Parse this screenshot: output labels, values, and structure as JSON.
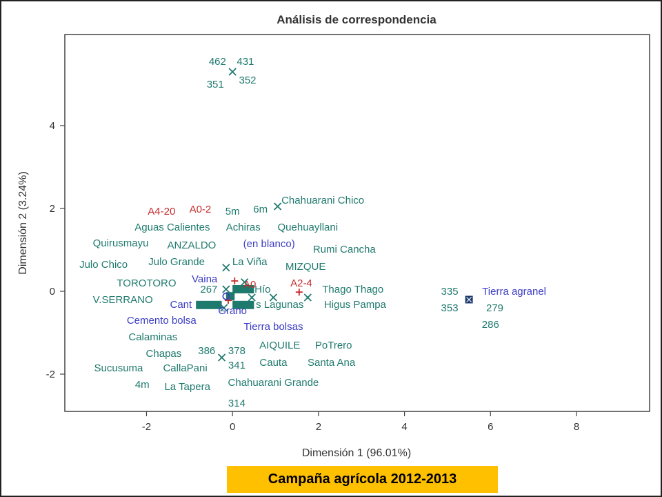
{
  "footer": {
    "text": "Campaña agrícola 2012-2013"
  },
  "colors": {
    "teal": "#1f7a6e",
    "red": "#c42b2b",
    "blue": "#3b3bc4",
    "navy": "#1c3a6e",
    "banner": "#ffc000"
  },
  "chart_data": {
    "type": "scatter",
    "title": "Análisis de correspondencia",
    "xlabel": "Dimensión 1 (96.01%)",
    "ylabel": "Dimensión 2 (3.24%)",
    "xlim": [
      -3.9,
      9.7
    ],
    "ylim": [
      -2.9,
      6.2
    ],
    "xticks": [
      "-2",
      "0",
      "2",
      "4",
      "6",
      "8"
    ],
    "xtick_values": [
      -2,
      0,
      2,
      4,
      6,
      8
    ],
    "yticks": [
      "-2",
      "0",
      "2",
      "4"
    ],
    "ytick_values": [
      -2,
      0,
      2,
      4
    ],
    "grid": false,
    "markers": [
      {
        "x": 0.0,
        "y": 5.3,
        "symbol": "x",
        "color": "teal"
      },
      {
        "x": 1.05,
        "y": 2.05,
        "symbol": "x",
        "color": "teal"
      },
      {
        "x": -0.15,
        "y": 0.57,
        "symbol": "x",
        "color": "teal"
      },
      {
        "x": 1.75,
        "y": -0.15,
        "symbol": "x",
        "color": "teal"
      },
      {
        "x": 0.95,
        "y": -0.15,
        "symbol": "x",
        "color": "teal"
      },
      {
        "x": -0.25,
        "y": -1.6,
        "symbol": "x",
        "color": "teal"
      },
      {
        "x": 0.28,
        "y": 0.22,
        "symbol": "x",
        "color": "teal"
      },
      {
        "x": 0.45,
        "y": -0.15,
        "symbol": "x",
        "color": "teal"
      },
      {
        "x": -0.2,
        "y": -0.4,
        "symbol": "x",
        "color": "teal"
      },
      {
        "x": -0.15,
        "y": 0.05,
        "symbol": "x",
        "color": "teal"
      },
      {
        "x": 1.55,
        "y": -0.02,
        "symbol": "+",
        "color": "red"
      },
      {
        "x": 0.05,
        "y": 0.25,
        "symbol": "+",
        "color": "red"
      },
      {
        "x": -0.1,
        "y": -0.22,
        "symbol": "+",
        "color": "red"
      },
      {
        "x": -0.15,
        "y": -0.12,
        "symbol": "o",
        "color": "blue"
      },
      {
        "x": 5.5,
        "y": -0.2,
        "symbol": "box",
        "color": "navy"
      }
    ],
    "clusters": [
      {
        "x": 0.25,
        "y": 0.05,
        "w": 0.5,
        "h": 0.2,
        "color": "teal"
      },
      {
        "x": -0.55,
        "y": -0.33,
        "w": 0.6,
        "h": 0.2,
        "color": "teal"
      },
      {
        "x": 0.25,
        "y": -0.33,
        "w": 0.5,
        "h": 0.2,
        "color": "teal"
      },
      {
        "x": -0.05,
        "y": -0.12,
        "w": 0.2,
        "h": 0.2,
        "color": "teal"
      }
    ],
    "annotations": [
      {
        "text": "462",
        "x": -0.35,
        "y": 5.55,
        "color": "teal"
      },
      {
        "text": "431",
        "x": 0.3,
        "y": 5.55,
        "color": "teal"
      },
      {
        "text": "351",
        "x": -0.4,
        "y": 5.0,
        "color": "teal"
      },
      {
        "text": "352",
        "x": 0.35,
        "y": 5.1,
        "color": "teal"
      },
      {
        "text": "Chahuarani Chico",
        "x": 2.1,
        "y": 2.2,
        "color": "teal"
      },
      {
        "text": "A4-20",
        "x": -1.65,
        "y": 1.93,
        "color": "red"
      },
      {
        "text": "A0-2",
        "x": -0.75,
        "y": 1.98,
        "color": "red"
      },
      {
        "text": "5m",
        "x": 0.0,
        "y": 1.93,
        "color": "teal"
      },
      {
        "text": "6m",
        "x": 0.65,
        "y": 1.98,
        "color": "teal"
      },
      {
        "text": "Aguas Calientes",
        "x": -1.4,
        "y": 1.55,
        "color": "teal"
      },
      {
        "text": "Achiras",
        "x": 0.25,
        "y": 1.55,
        "color": "teal"
      },
      {
        "text": "Quehuayllani",
        "x": 1.75,
        "y": 1.55,
        "color": "teal"
      },
      {
        "text": "Quirusmayu",
        "x": -2.6,
        "y": 1.17,
        "color": "teal"
      },
      {
        "text": "ANZALDO",
        "x": -0.95,
        "y": 1.12,
        "color": "teal"
      },
      {
        "text": "(en blanco)",
        "x": 0.85,
        "y": 1.15,
        "color": "blue"
      },
      {
        "text": "Rumi Cancha",
        "x": 2.6,
        "y": 1.02,
        "color": "teal"
      },
      {
        "text": "Julo Grande",
        "x": -1.3,
        "y": 0.72,
        "color": "teal"
      },
      {
        "text": "La Viña",
        "x": 0.4,
        "y": 0.72,
        "color": "teal"
      },
      {
        "text": "MIZQUE",
        "x": 1.7,
        "y": 0.6,
        "color": "teal"
      },
      {
        "text": "Julo Chico",
        "x": -3.0,
        "y": 0.65,
        "color": "teal"
      },
      {
        "text": "TOROTORO",
        "x": -2.0,
        "y": 0.2,
        "color": "teal"
      },
      {
        "text": "Vaina",
        "x": -0.65,
        "y": 0.3,
        "color": "blue"
      },
      {
        "text": "267",
        "x": -0.55,
        "y": 0.05,
        "color": "teal"
      },
      {
        "text": "A0",
        "x": 0.4,
        "y": 0.17,
        "color": "red"
      },
      {
        "text": "Hío",
        "x": 0.7,
        "y": 0.05,
        "color": "teal"
      },
      {
        "text": "A2-4",
        "x": 1.6,
        "y": 0.2,
        "color": "red"
      },
      {
        "text": "Thago Thago",
        "x": 2.8,
        "y": 0.05,
        "color": "teal"
      },
      {
        "text": "V.SERRANO",
        "x": -2.55,
        "y": -0.2,
        "color": "teal"
      },
      {
        "text": "Cant",
        "x": -1.2,
        "y": -0.32,
        "color": "blue"
      },
      {
        "text": "s Lagunas",
        "x": 1.1,
        "y": -0.32,
        "color": "teal"
      },
      {
        "text": "Higus Pampa",
        "x": 2.85,
        "y": -0.32,
        "color": "teal"
      },
      {
        "text": "Grano",
        "x": 0.0,
        "y": -0.47,
        "color": "blue"
      },
      {
        "text": "Cemento bolsa",
        "x": -1.65,
        "y": -0.7,
        "color": "blue"
      },
      {
        "text": "Tierra bolsas",
        "x": 0.95,
        "y": -0.85,
        "color": "blue"
      },
      {
        "text": "Calaminas",
        "x": -1.85,
        "y": -1.1,
        "color": "teal"
      },
      {
        "text": "AIQUILE",
        "x": 1.1,
        "y": -1.3,
        "color": "teal"
      },
      {
        "text": "PoTrero",
        "x": 2.35,
        "y": -1.3,
        "color": "teal"
      },
      {
        "text": "Chapas",
        "x": -1.6,
        "y": -1.5,
        "color": "teal"
      },
      {
        "text": "386",
        "x": -0.6,
        "y": -1.43,
        "color": "teal"
      },
      {
        "text": "378",
        "x": 0.1,
        "y": -1.43,
        "color": "teal"
      },
      {
        "text": "Sucusuma",
        "x": -2.65,
        "y": -1.85,
        "color": "teal"
      },
      {
        "text": "CallaPani",
        "x": -1.1,
        "y": -1.85,
        "color": "teal"
      },
      {
        "text": "341",
        "x": 0.1,
        "y": -1.78,
        "color": "teal"
      },
      {
        "text": "Cauta",
        "x": 0.95,
        "y": -1.72,
        "color": "teal"
      },
      {
        "text": "Santa Ana",
        "x": 2.3,
        "y": -1.72,
        "color": "teal"
      },
      {
        "text": "4m",
        "x": -2.1,
        "y": -2.25,
        "color": "teal"
      },
      {
        "text": "La Tapera",
        "x": -1.05,
        "y": -2.3,
        "color": "teal"
      },
      {
        "text": "Chahuarani Grande",
        "x": 0.95,
        "y": -2.2,
        "color": "teal"
      },
      {
        "text": "314",
        "x": 0.1,
        "y": -2.7,
        "color": "teal"
      },
      {
        "text": "335",
        "x": 5.05,
        "y": 0.0,
        "color": "teal"
      },
      {
        "text": "Tierra agranel",
        "x": 6.55,
        "y": 0.0,
        "color": "blue"
      },
      {
        "text": "353",
        "x": 5.05,
        "y": -0.4,
        "color": "teal"
      },
      {
        "text": "279",
        "x": 6.1,
        "y": -0.4,
        "color": "teal"
      },
      {
        "text": "286",
        "x": 6.0,
        "y": -0.8,
        "color": "teal"
      }
    ]
  }
}
